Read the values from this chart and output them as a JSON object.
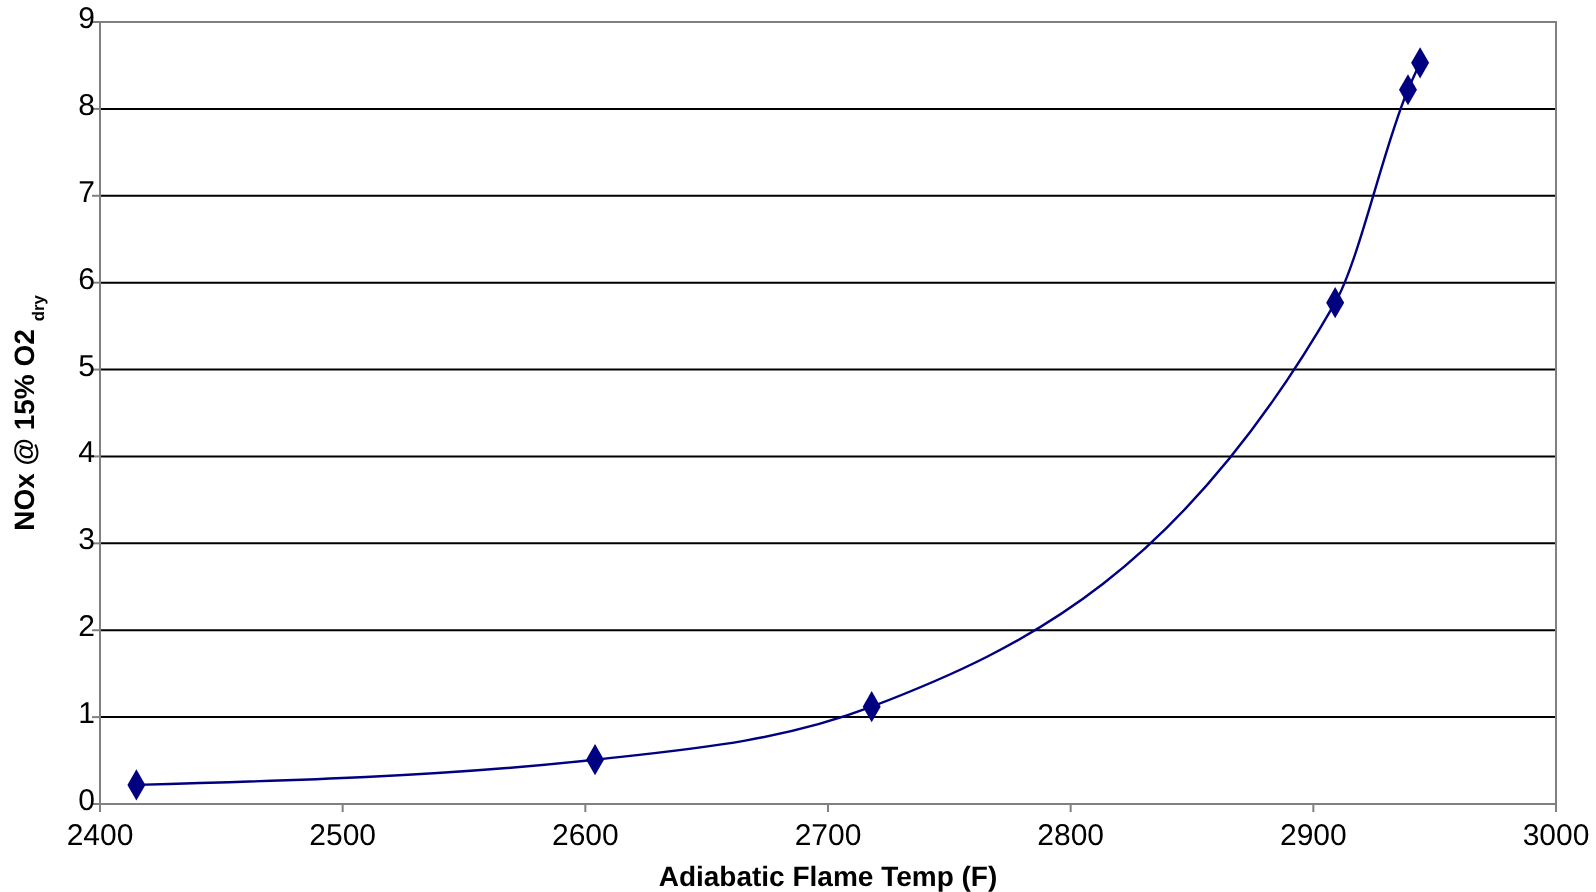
{
  "chart_data": {
    "type": "line",
    "xlabel": "Adiabatic Flame Temp (F)",
    "ylabel": "NOx @ 15% O2 $_{dry}$",
    "x": [
      2415,
      2604,
      2718,
      2909,
      2939,
      2944
    ],
    "series": [
      {
        "color": "#000080",
        "values": [
          0.22,
          0.51,
          1.12,
          5.77,
          8.22,
          8.53
        ]
      }
    ],
    "xlim": [
      2400,
      3000
    ],
    "xticks": [
      2400,
      2500,
      2600,
      2700,
      2800,
      2900,
      3000
    ],
    "ylim": [
      0,
      9
    ],
    "yticks": [
      0,
      1,
      2,
      3,
      4,
      5,
      6,
      7,
      8,
      9
    ],
    "grid": "y",
    "marker": "diamond",
    "line_style": "solid"
  }
}
